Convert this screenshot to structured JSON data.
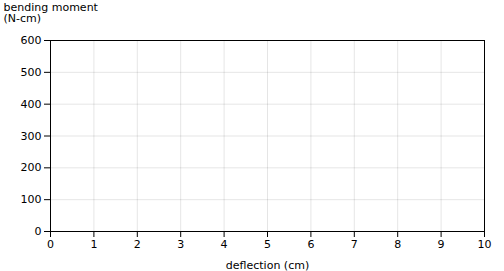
{
  "chart_data": {
    "type": "axes",
    "xlabel": "deflection (cm)",
    "ylabel": "bending moment\n(N-cm)",
    "xlim": [
      0,
      10
    ],
    "ylim": [
      0,
      600
    ],
    "xticks": [
      0,
      1,
      2,
      3,
      4,
      5,
      6,
      7,
      8,
      9,
      10
    ],
    "yticks": [
      0,
      100,
      200,
      300,
      400,
      500,
      600
    ],
    "grid": true
  }
}
